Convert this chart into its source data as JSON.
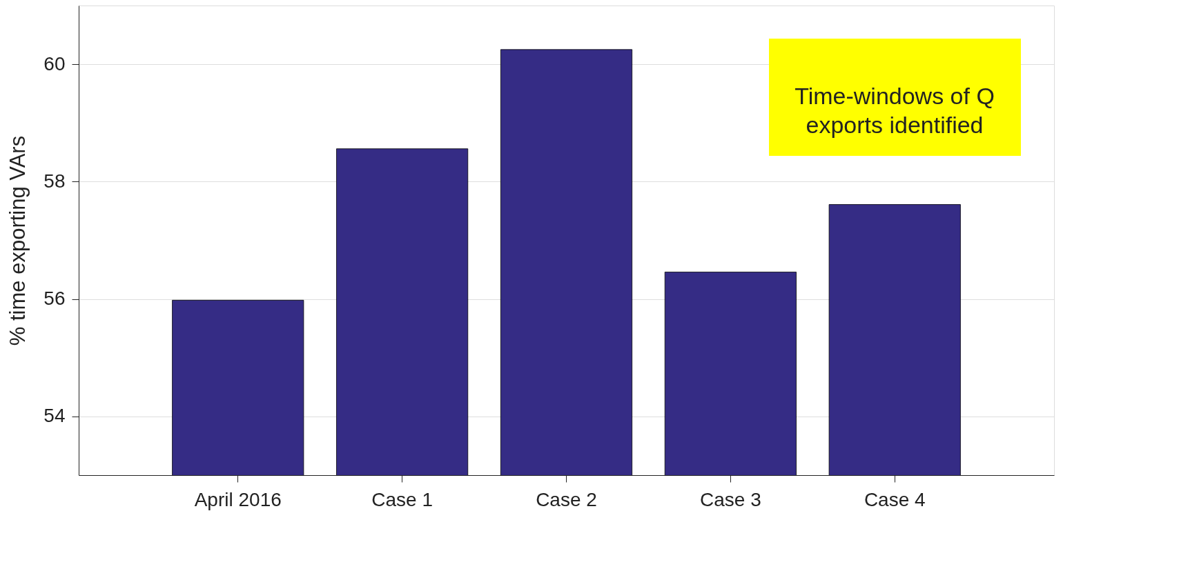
{
  "chart_data": {
    "type": "bar",
    "ylabel": "% time exporting VArs",
    "categories": [
      "April 2016",
      "Case 1",
      "Case 2",
      "Case 3",
      "Case 4"
    ],
    "values": [
      55.98,
      58.56,
      60.25,
      56.46,
      57.61
    ],
    "color": "#352c85",
    "ylim": [
      53,
      61
    ],
    "yticks": [
      54,
      56,
      58,
      60
    ],
    "grid": "y",
    "annotations": [
      "Time-windows of Q exports identified"
    ]
  }
}
